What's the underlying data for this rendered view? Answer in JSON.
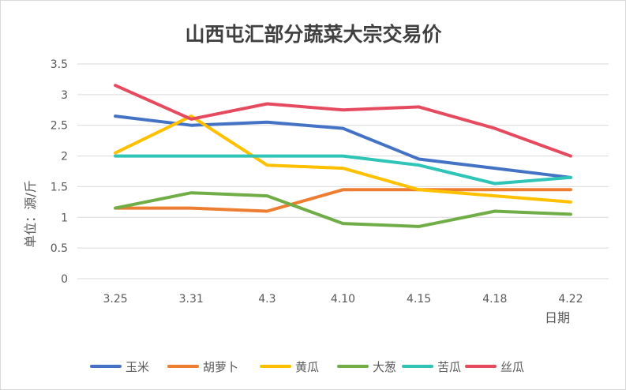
{
  "chart_data": {
    "type": "line",
    "title": "山西屯汇部分蔬菜大宗交易价",
    "xlabel": "日期",
    "ylabel": "单位：源/斤",
    "categories": [
      "3.25",
      "3.31",
      "4.3",
      "4.10",
      "4.15",
      "4.18",
      "4.22"
    ],
    "ylim": [
      0,
      3.5
    ],
    "yticks": [
      "0",
      "0.5",
      "1",
      "1.5",
      "2",
      "2.5",
      "3",
      "3.5"
    ],
    "grid": true,
    "legend_position": "bottom",
    "series": [
      {
        "name": "玉米",
        "color": "#4472c4",
        "values": [
          2.65,
          2.5,
          2.55,
          2.45,
          1.95,
          1.8,
          1.65
        ]
      },
      {
        "name": "胡萝卜",
        "color": "#ed7d31",
        "values": [
          1.15,
          1.15,
          1.1,
          1.45,
          1.45,
          1.45,
          1.45
        ]
      },
      {
        "name": "黄瓜",
        "color": "#ffc000",
        "values": [
          2.05,
          2.65,
          1.85,
          1.8,
          1.45,
          1.35,
          1.25
        ]
      },
      {
        "name": "大葱",
        "color": "#70ad47",
        "values": [
          1.15,
          1.4,
          1.35,
          0.9,
          0.85,
          1.1,
          1.05
        ]
      },
      {
        "name": "苦瓜",
        "color": "#2ec4b6",
        "values": [
          2.0,
          2.0,
          2.0,
          2.0,
          1.85,
          1.55,
          1.65
        ]
      },
      {
        "name": "丝瓜",
        "color": "#e64a5f",
        "values": [
          3.15,
          2.6,
          2.85,
          2.75,
          2.8,
          2.45,
          2.0
        ]
      }
    ]
  }
}
